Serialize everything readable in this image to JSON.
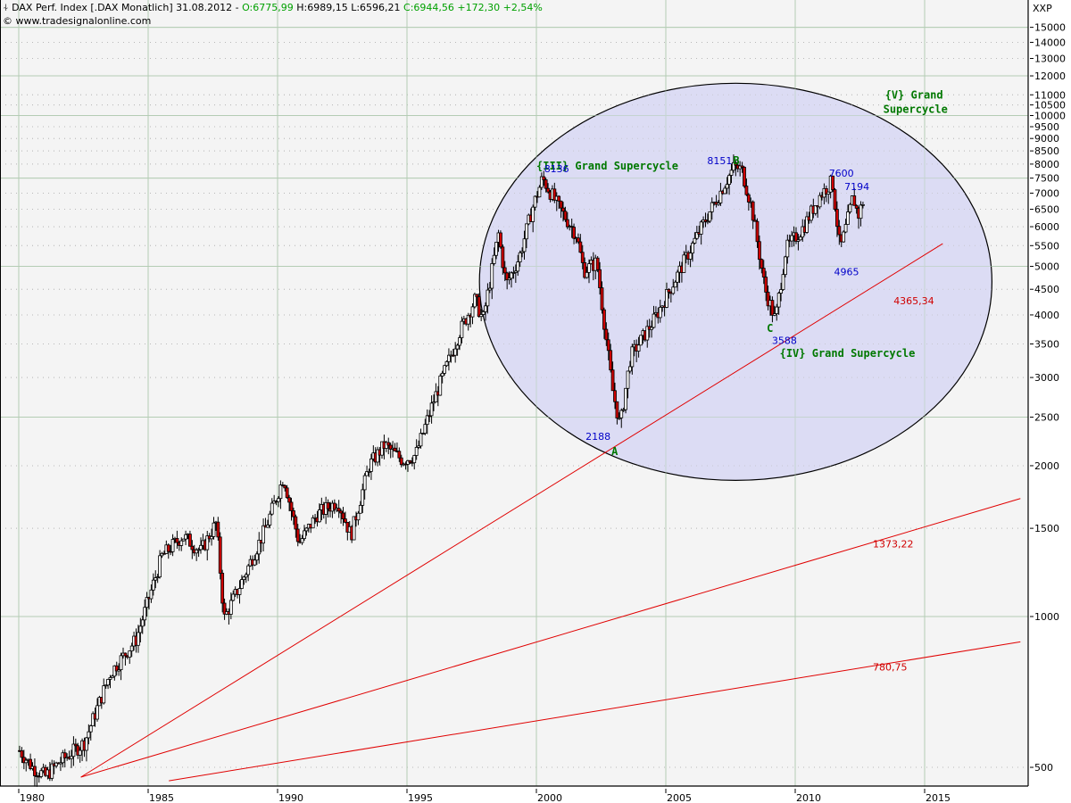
{
  "header": {
    "symbol_icon": "candlestick-icon",
    "title": "DAX Perf. Index [.DAX  Monatlich] 31.08.2012 - ",
    "open": "O:6775,99",
    "high": "H:6989,15",
    "low": "L:6596,21",
    "close": "C:6944,56 +172,30 +2,54%",
    "copyright": "© www.tradesignalonline.com",
    "axis_unit": "XXP"
  },
  "colors": {
    "background": "#f4f4f4",
    "ellipse_fill": "#dcdcf4",
    "major_grid": "#b4ccb4",
    "minor_grid": "#b8b8b8",
    "trendline": "#e00000",
    "wave_label": "#007800",
    "price_label": "#0000c8",
    "trend_value": "#d00000",
    "candle_down": "#d00000",
    "candle_up": "#ffffff"
  },
  "chart_data": {
    "type": "candlestick",
    "title": "DAX Perf. Index [.DAX Monatlich] 31.08.2012",
    "xlabel": "",
    "ylabel": "XXP",
    "yscale": "log",
    "ylim": [
      470,
      16500
    ],
    "xlim": [
      1979.95,
      2018.7
    ],
    "x_ticks": [
      "1980",
      "1985",
      "1990",
      "1995",
      "2000",
      "2005",
      "2010",
      "2015"
    ],
    "y_ticks": [
      500,
      1000,
      1500,
      2000,
      2500,
      3000,
      3500,
      4000,
      4500,
      5000,
      5500,
      6000,
      6500,
      7000,
      7500,
      8000,
      8500,
      9000,
      9500,
      10000,
      10500,
      11000,
      12000,
      13000,
      14000,
      15000
    ],
    "y_major_grid": [
      1000,
      2500,
      5000,
      7500,
      10000,
      12000,
      15000
    ],
    "last_bar": {
      "date": "31.08.2012",
      "open": 6775.99,
      "high": 6989.15,
      "low": 6596.21,
      "close": 6944.56,
      "change": 172.3,
      "change_pct": 2.54
    },
    "price_path": {
      "x": [
        1980.0,
        1980.5,
        1981.0,
        1981.5,
        1982.5,
        1983.5,
        1984.5,
        1985.5,
        1986.3,
        1987.0,
        1987.6,
        1987.9,
        1988.5,
        1989.5,
        1990.2,
        1990.8,
        1991.5,
        1992.3,
        1992.8,
        1993.5,
        1994.1,
        1994.8,
        1995.3,
        1996.0,
        1997.0,
        1997.6,
        1997.9,
        1998.5,
        1998.8,
        1999.3,
        1999.8,
        2000.2,
        2000.8,
        2001.5,
        2001.8,
        2002.3,
        2002.9,
        2003.2,
        2003.6,
        2004.5,
        2005.5,
        2006.5,
        2007.3,
        2007.6,
        2007.9,
        2008.3,
        2008.8,
        2009.2,
        2009.6,
        2010.3,
        2010.9,
        2011.4,
        2011.7,
        2011.9,
        2012.2,
        2012.4,
        2012.67
      ],
      "price": [
        540,
        500,
        480,
        510,
        560,
        770,
        900,
        1320,
        1450,
        1350,
        1540,
        990,
        1150,
        1500,
        1900,
        1400,
        1600,
        1700,
        1450,
        2000,
        2200,
        2050,
        2100,
        2700,
        3700,
        4300,
        3900,
        5800,
        4600,
        5200,
        6500,
        7500,
        6600,
        5800,
        4900,
        5100,
        2850,
        2400,
        3300,
        3900,
        4900,
        6200,
        7400,
        7900,
        7800,
        6500,
        4500,
        3900,
        5400,
        6000,
        6900,
        7400,
        5400,
        5900,
        6900,
        6300,
        6944
      ]
    },
    "annotations": [
      {
        "text": "{III} Grand Supercycle",
        "x": 2000.0,
        "price": 7800,
        "color": "green"
      },
      {
        "text": "8136",
        "x": 2000.3,
        "price": 7700,
        "color": "blue"
      },
      {
        "text": "8151",
        "x": 2006.6,
        "price": 8000,
        "color": "blue"
      },
      {
        "text": "B",
        "x": 2007.6,
        "price": 8000,
        "color": "green"
      },
      {
        "text": "7600",
        "x": 2011.3,
        "price": 7550,
        "color": "blue"
      },
      {
        "text": "7194",
        "x": 2011.9,
        "price": 7100,
        "color": "blue"
      },
      {
        "text": "{V} Grand Supercycle",
        "x": 2013.4,
        "price": 10800,
        "color": "green"
      },
      {
        "text": "4965",
        "x": 2011.5,
        "price": 4800,
        "color": "blue"
      },
      {
        "text": "4365,34",
        "x": 2013.8,
        "price": 4200,
        "color": "red"
      },
      {
        "text": "C",
        "x": 2008.9,
        "price": 3700,
        "color": "green"
      },
      {
        "text": "3588",
        "x": 2009.1,
        "price": 3500,
        "color": "blue"
      },
      {
        "text": "{IV} Grand Supercycle",
        "x": 2009.4,
        "price": 3300,
        "color": "green"
      },
      {
        "text": "2188",
        "x": 2001.9,
        "price": 2250,
        "color": "blue"
      },
      {
        "text": "A",
        "x": 2002.9,
        "price": 2100,
        "color": "green"
      },
      {
        "text": "1373,22",
        "x": 2013.0,
        "price": 1373,
        "color": "red"
      },
      {
        "text": "780,75",
        "x": 2013.0,
        "price": 780,
        "color": "red"
      }
    ],
    "trendlines": [
      {
        "name": "support-1",
        "value_label": "4365,34",
        "from": {
          "x": 1982.4,
          "price": 478
        },
        "to": {
          "x": 2015.7,
          "price": 5550
        }
      },
      {
        "name": "support-2",
        "value_label": "1373,22",
        "from": {
          "x": 1982.4,
          "price": 478
        },
        "to": {
          "x": 2018.7,
          "price": 1720
        }
      },
      {
        "name": "support-3",
        "value_label": "780,75",
        "from": {
          "x": 1985.8,
          "price": 470
        },
        "to": {
          "x": 2018.7,
          "price": 890
        }
      }
    ],
    "ellipse": {
      "cx_year": 2007.7,
      "c_price": 4480,
      "rx_years": 9.9,
      "top_price": 11600,
      "bottom_price": 1870
    }
  }
}
